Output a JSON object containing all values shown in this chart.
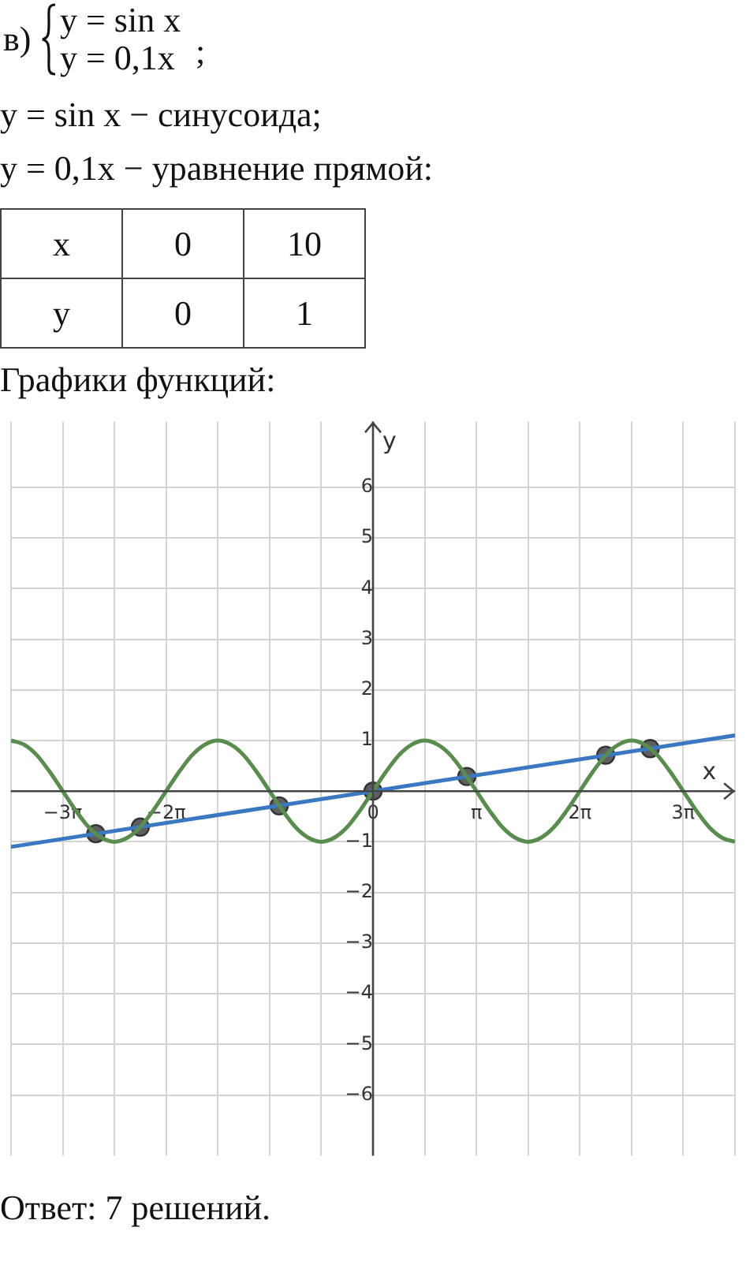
{
  "chart_data": {
    "type": "line",
    "title": "Графики функций:",
    "xlabel": "x",
    "ylabel": "y",
    "annotations": [
      "в)",
      "y = sin x",
      "y = 0,1x",
      ";",
      "y = sin x − синусоида;",
      "y = 0,1x − уравнение прямой:",
      "x",
      "0",
      "10",
      "y",
      "0",
      "1",
      "Ответ:  7 решений."
    ],
    "series": [
      {
        "color": "#5b8c4f",
        "marker": "none",
        "x": [
          -10.9956,
          -10.6029,
          -10.2102,
          -9.8175,
          -9.4248,
          -9.0321,
          -8.6394,
          -8.2467,
          -7.854,
          -7.4613,
          -7.0686,
          -6.6759,
          -6.2832,
          -5.8905,
          -5.4978,
          -5.1051,
          -4.7124,
          -4.3197,
          -3.927,
          -3.5343,
          -3.1416,
          -2.7489,
          -2.3562,
          -1.9635,
          -1.5708,
          -1.1781,
          -0.7854,
          -0.3927,
          0,
          0.3927,
          0.7854,
          1.1781,
          1.5708,
          1.9635,
          2.3562,
          2.7489,
          3.1416,
          3.5343,
          3.927,
          4.3197,
          4.7124,
          5.1051,
          5.4978,
          5.8905,
          6.2832,
          6.6759,
          7.0686,
          7.4613,
          7.854,
          8.2467,
          8.6394,
          9.0321,
          9.4248,
          9.8175,
          10.2102,
          10.6029,
          10.9956
        ],
        "values": [
          1,
          0.92,
          0.71,
          0.38,
          0,
          -0.38,
          -0.71,
          -0.92,
          -1,
          -0.92,
          -0.71,
          -0.38,
          0,
          0.38,
          0.71,
          0.92,
          1,
          0.92,
          0.71,
          0.38,
          0,
          -0.38,
          -0.71,
          -0.92,
          -1,
          -0.92,
          -0.71,
          -0.38,
          0,
          0.38,
          0.71,
          0.92,
          1,
          0.92,
          0.71,
          0.38,
          0,
          -0.38,
          -0.71,
          -0.92,
          -1,
          -0.92,
          -0.71,
          -0.38,
          0,
          0.38,
          0.71,
          0.92,
          1,
          0.92,
          0.71,
          0.38,
          0,
          -0.38,
          -0.71,
          -0.92,
          -1
        ]
      },
      {
        "color": "#3b78c2",
        "marker": "none",
        "x": [
          -11,
          11
        ],
        "values": [
          -1.1,
          1.1
        ]
      },
      {
        "type": "scatter",
        "color": "#5e5e5e",
        "marker": "circle",
        "x": [
          -8.42,
          -7.07,
          -2.85,
          0,
          2.85,
          7.07,
          8.42
        ],
        "values": [
          -0.84,
          -0.71,
          -0.29,
          0,
          0.29,
          0.71,
          0.84
        ]
      }
    ],
    "xlim": [
      -11,
      11
    ],
    "ylim": [
      -7.2,
      7.3
    ],
    "xticks": [
      {
        "value": -10.9956,
        "label": null
      },
      {
        "value": -9.4248,
        "label": "−3π"
      },
      {
        "value": -7.854,
        "label": null
      },
      {
        "value": -6.2832,
        "label": "−2π"
      },
      {
        "value": -4.7124,
        "label": null
      },
      {
        "value": -3.1416,
        "label": null
      },
      {
        "value": -1.5708,
        "label": null
      },
      0,
      {
        "value": 1.5708,
        "label": null
      },
      {
        "value": 3.1416,
        "label": "π"
      },
      {
        "value": 4.7124,
        "label": null
      },
      {
        "value": 6.2832,
        "label": "2π"
      },
      {
        "value": 7.854,
        "label": null
      },
      {
        "value": 9.4248,
        "label": "3π"
      },
      {
        "value": 10.9956,
        "label": null
      }
    ],
    "yticks": [
      {
        "value": -6,
        "label": "−6"
      },
      {
        "value": -5,
        "label": "−5"
      },
      {
        "value": -4,
        "label": "−4"
      },
      {
        "value": -3,
        "label": "−3"
      },
      {
        "value": -2,
        "label": "−2"
      },
      {
        "value": -1,
        "label": "−1"
      },
      {
        "value": 0,
        "label": null
      },
      1,
      2,
      3,
      4,
      5,
      6
    ],
    "grid": true,
    "legend": false
  }
}
